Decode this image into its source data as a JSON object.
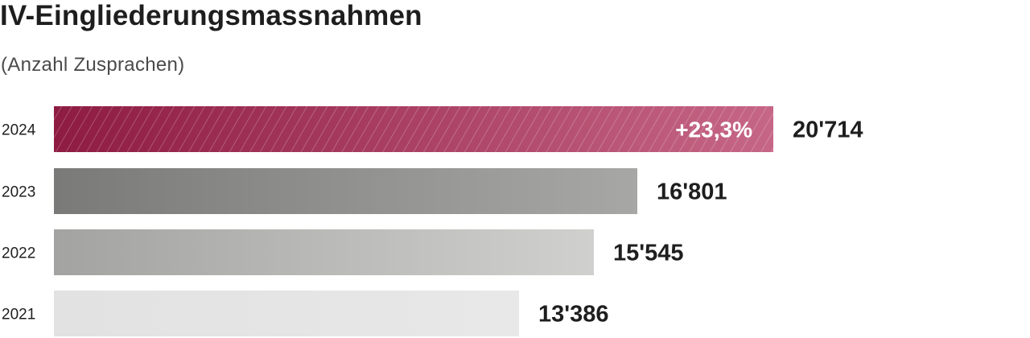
{
  "header": {
    "title": "IV-Eingliederungsmassnahmen",
    "subtitle": "(Anzahl Zusprachen)"
  },
  "chart_data": {
    "type": "bar",
    "orientation": "horizontal",
    "title": "IV-Eingliederungsmassnahmen",
    "subtitle": "(Anzahl Zusprachen)",
    "categories": [
      "2024",
      "2023",
      "2022",
      "2021"
    ],
    "values": [
      20714,
      16801,
      15545,
      13386
    ],
    "value_labels": [
      "20'714",
      "16'801",
      "15'545",
      "13'386"
    ],
    "annotations": [
      {
        "category": "2024",
        "text": "+23,3%"
      }
    ],
    "colors": {
      "2024": {
        "from": "#8e1b42",
        "to": "#c66686"
      },
      "2023": {
        "from": "#7a7a78",
        "to": "#a7a7a5"
      },
      "2022": {
        "from": "#a3a3a1",
        "to": "#d0d0ce"
      },
      "2021": {
        "from": "#e2e2e2",
        "to": "#e8e8e8"
      }
    },
    "xlim": [
      0,
      20714
    ],
    "grid": false,
    "legend": "none"
  }
}
